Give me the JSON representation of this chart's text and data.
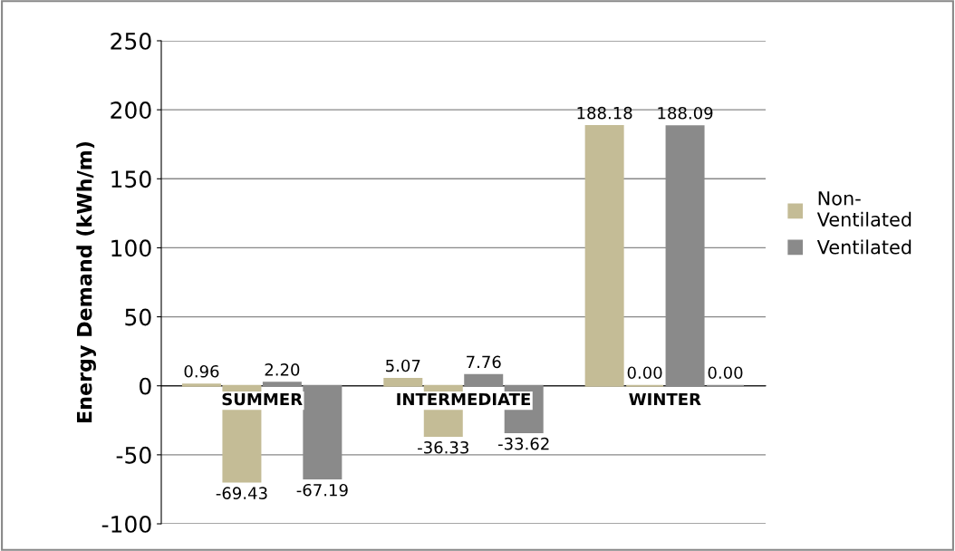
{
  "chart_data": {
    "type": "bar",
    "ylabel": "Energy Demand (kWh/m)",
    "categories": [
      "SUMMER",
      "INTERMEDIATE",
      "WINTER"
    ],
    "series": [
      {
        "name": "Non-Ventilated",
        "color": "#c4bc96",
        "values": [
          0.96,
          5.07,
          188.18
        ],
        "value_labels": [
          "0.96",
          "5.07",
          "188.18"
        ]
      },
      {
        "color": "#c4bc96",
        "values": [
          -69.43,
          -36.33,
          0
        ],
        "value_labels": [
          "-69.43",
          "-36.33",
          "0.00"
        ]
      },
      {
        "name": "Ventilated",
        "color": "#8a8a8a",
        "values": [
          2.2,
          7.76,
          188.09
        ],
        "value_labels": [
          "2.20",
          "7.76",
          "188.09"
        ]
      },
      {
        "color": "#8a8a8a",
        "values": [
          -67.19,
          -33.62,
          0
        ],
        "value_labels": [
          "-67.19",
          "-33.62",
          "0.00"
        ]
      }
    ],
    "ylim": [
      -100,
      250
    ],
    "yticks": [
      -100,
      -50,
      0,
      50,
      100,
      150,
      200,
      250
    ],
    "grid": "y",
    "legend": "right"
  }
}
